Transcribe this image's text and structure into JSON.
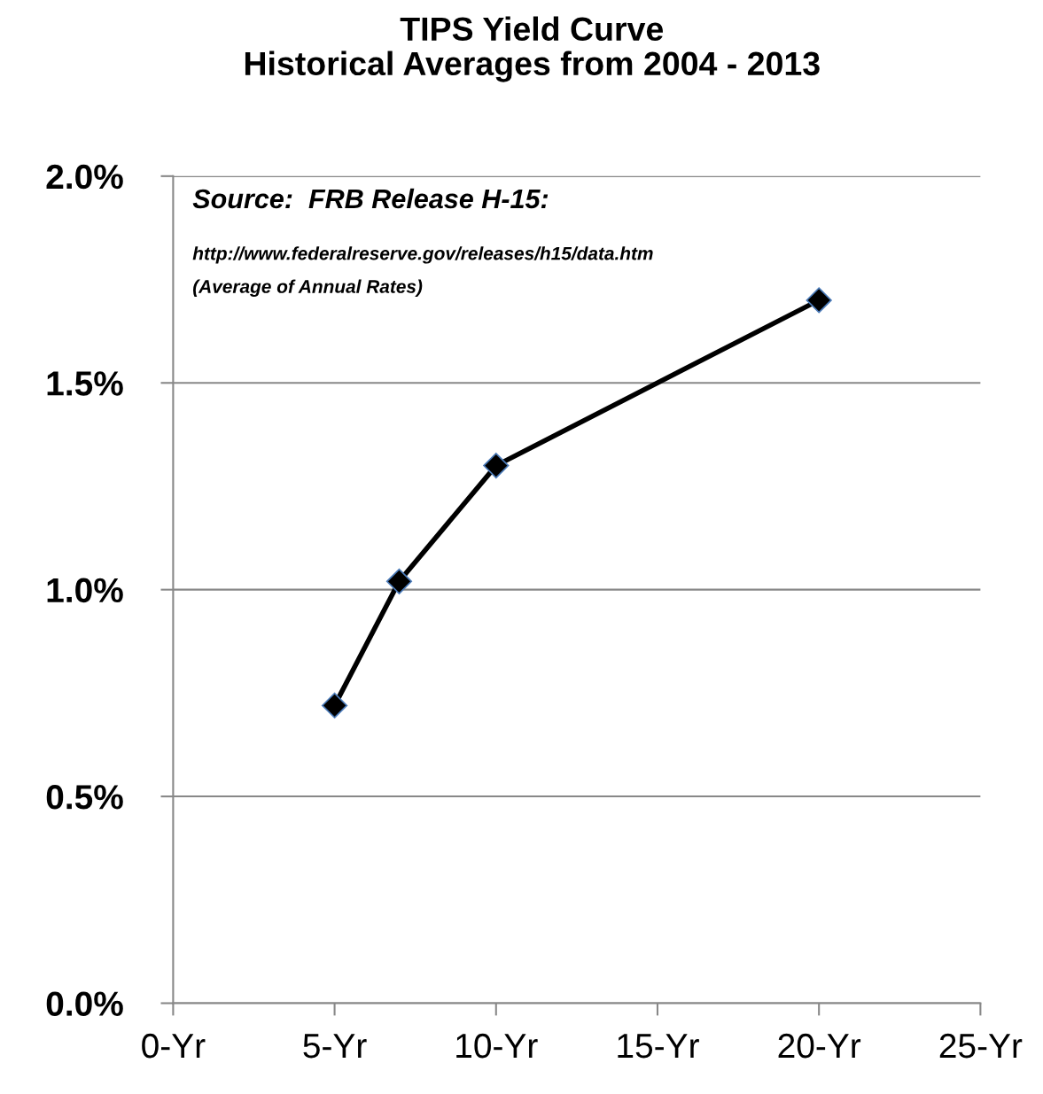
{
  "chart_data": {
    "type": "line",
    "title": "TIPS Yield Curve\nHistorical Averages from 2004 - 2013",
    "annotations": [
      "Source:  FRB Release H-15:",
      "http://www.federalreserve.gov/releases/h15/data.htm",
      "(Average of Annual Rates)"
    ],
    "x": [
      5,
      7,
      10,
      20
    ],
    "series": [
      {
        "color": "#000000",
        "values": [
          0.72,
          1.02,
          1.3,
          1.7
        ]
      }
    ],
    "xlim": [
      0,
      25
    ],
    "xticks": [
      {
        "value": 0,
        "label": "0-Yr"
      },
      {
        "value": 5,
        "label": "5-Yr"
      },
      {
        "value": 10,
        "label": "10-Yr"
      },
      {
        "value": 15,
        "label": "15-Yr"
      },
      {
        "value": 20,
        "label": "20-Yr"
      },
      {
        "value": 25,
        "label": "25-Yr"
      }
    ],
    "ylim": [
      0,
      2
    ],
    "yticks": [
      {
        "value": 0,
        "label": "0.0%"
      },
      {
        "value": 0.5,
        "label": "0.5%"
      },
      {
        "value": 1,
        "label": "1.0%"
      },
      {
        "value": 1.5,
        "label": "1.5%"
      },
      {
        "value": 2,
        "label": "2.0%"
      }
    ],
    "grid": "y",
    "marker": "diamond",
    "line_style": "solid",
    "legend": false
  }
}
